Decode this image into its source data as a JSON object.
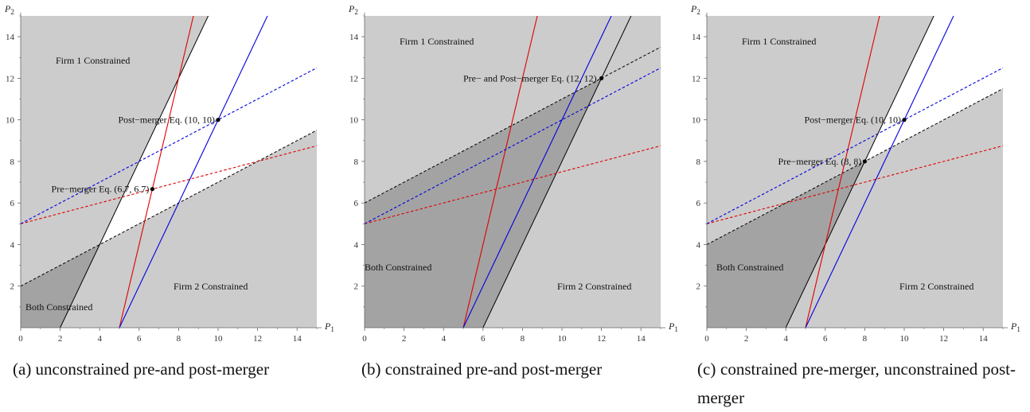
{
  "chart_data": [
    {
      "type": "line",
      "xlabel": "P1",
      "ylabel": "P2",
      "xlim": [
        0,
        15
      ],
      "ylim": [
        0,
        15
      ],
      "xticks": [
        0,
        2,
        4,
        6,
        8,
        10,
        12,
        14
      ],
      "yticks": [
        2,
        4,
        6,
        8,
        10,
        12,
        14
      ],
      "regions": [
        {
          "label": "Firm 1 Constrained",
          "color": "#cccccc"
        },
        {
          "label": "Firm 2 Constrained",
          "color": "#cccccc"
        },
        {
          "label": "Both Constrained",
          "color": "#a3a3a3"
        },
        {
          "label": "",
          "color": "#ffffff"
        }
      ],
      "series": [
        {
          "color": "#000000",
          "style": "solid",
          "points": [
            [
              2,
              0
            ],
            [
              9.5,
              15
            ]
          ]
        },
        {
          "color": "#000000",
          "style": "dashed",
          "points": [
            [
              0,
              2
            ],
            [
              15,
              9.5
            ]
          ]
        },
        {
          "color": "#e00000",
          "style": "solid",
          "points": [
            [
              5,
              0
            ],
            [
              8.75,
              15
            ]
          ]
        },
        {
          "color": "#0000e0",
          "style": "solid",
          "points": [
            [
              5,
              0
            ],
            [
              12.5,
              15
            ]
          ]
        },
        {
          "color": "#e00000",
          "style": "dashed",
          "points": [
            [
              0,
              5
            ],
            [
              15,
              8.75
            ]
          ]
        },
        {
          "color": "#0000e0",
          "style": "dashed",
          "points": [
            [
              0,
              5
            ],
            [
              15,
              12.5
            ]
          ]
        }
      ],
      "equilibria": [
        {
          "label": "Post−merger Eq. (10, 10)",
          "x": 10,
          "y": 10
        },
        {
          "label": "Pre−merger Eq. (6.7, 6.7)",
          "x": 6.67,
          "y": 6.67
        }
      ],
      "caption": "(a) unconstrained pre-and post-merger"
    },
    {
      "type": "line",
      "xlabel": "P1",
      "ylabel": "P2",
      "xlim": [
        0,
        15
      ],
      "ylim": [
        0,
        15
      ],
      "xticks": [
        0,
        2,
        4,
        6,
        8,
        10,
        12,
        14
      ],
      "yticks": [
        2,
        4,
        6,
        8,
        10,
        12,
        14
      ],
      "regions": [
        {
          "label": "Firm 1 Constrained",
          "color": "#cccccc"
        },
        {
          "label": "Firm 2 Constrained",
          "color": "#cccccc"
        },
        {
          "label": "Both Constrained",
          "color": "#a3a3a3"
        }
      ],
      "series": [
        {
          "color": "#000000",
          "style": "solid",
          "points": [
            [
              6,
              0
            ],
            [
              8,
              4
            ],
            [
              10,
              8
            ],
            [
              12,
              12
            ],
            [
              13.5,
              15
            ]
          ]
        },
        {
          "color": "#000000",
          "style": "dashed",
          "points": [
            [
              0,
              6
            ],
            [
              12,
              12
            ],
            [
              15,
              13.5
            ]
          ]
        },
        {
          "color": "#e00000",
          "style": "solid",
          "points": [
            [
              5,
              0
            ],
            [
              8.75,
              15
            ]
          ]
        },
        {
          "color": "#0000e0",
          "style": "solid",
          "points": [
            [
              5,
              0
            ],
            [
              12.5,
              15
            ]
          ]
        },
        {
          "color": "#e00000",
          "style": "dashed",
          "points": [
            [
              0,
              5
            ],
            [
              15,
              8.75
            ]
          ]
        },
        {
          "color": "#0000e0",
          "style": "dashed",
          "points": [
            [
              0,
              5
            ],
            [
              15,
              12.5
            ]
          ]
        }
      ],
      "equilibria": [
        {
          "label": "Pre− and Post−merger Eq. (12, 12)",
          "x": 12,
          "y": 12
        }
      ],
      "caption": "(b) constrained pre-and post-merger"
    },
    {
      "type": "line",
      "xlabel": "P1",
      "ylabel": "P2",
      "xlim": [
        0,
        15
      ],
      "ylim": [
        0,
        15
      ],
      "xticks": [
        0,
        2,
        4,
        6,
        8,
        10,
        12,
        14
      ],
      "yticks": [
        2,
        4,
        6,
        8,
        10,
        12,
        14
      ],
      "regions": [
        {
          "label": "Firm 1 Constrained",
          "color": "#cccccc"
        },
        {
          "label": "Firm 2 Constrained",
          "color": "#cccccc"
        },
        {
          "label": "Both Constrained",
          "color": "#a3a3a3"
        },
        {
          "label": "",
          "color": "#ffffff"
        }
      ],
      "series": [
        {
          "color": "#000000",
          "style": "solid",
          "points": [
            [
              4,
              0
            ],
            [
              11.5,
              15
            ]
          ]
        },
        {
          "color": "#000000",
          "style": "dashed",
          "points": [
            [
              0,
              4
            ],
            [
              15,
              11.5
            ]
          ]
        },
        {
          "color": "#e00000",
          "style": "solid",
          "points": [
            [
              5,
              0
            ],
            [
              8.75,
              15
            ]
          ]
        },
        {
          "color": "#0000e0",
          "style": "solid",
          "points": [
            [
              5,
              0
            ],
            [
              12.5,
              15
            ]
          ]
        },
        {
          "color": "#e00000",
          "style": "dashed",
          "points": [
            [
              0,
              5
            ],
            [
              15,
              8.75
            ]
          ]
        },
        {
          "color": "#0000e0",
          "style": "dashed",
          "points": [
            [
              0,
              5
            ],
            [
              15,
              12.5
            ]
          ]
        }
      ],
      "equilibria": [
        {
          "label": "Post−merger Eq. (10, 10)",
          "x": 10,
          "y": 10
        },
        {
          "label": "Pre−merger Eq. (8, 8)",
          "x": 8,
          "y": 8
        }
      ],
      "caption": "(c) constrained pre-merger, unconstrained post-merger"
    }
  ]
}
